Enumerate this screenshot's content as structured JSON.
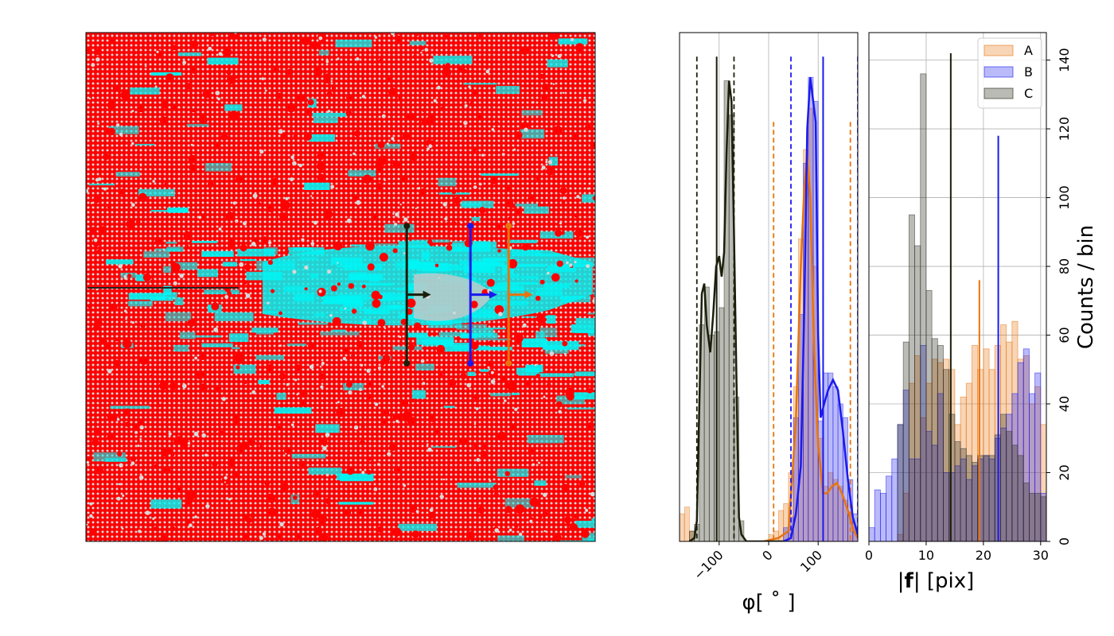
{
  "colors": {
    "A": "#e8730c",
    "B": "#1a1aee",
    "C": "#1a1f0a",
    "quiver_background": "#ff0000",
    "quiver_secondary": "#00f5f5",
    "quiver_dots": "#d8d8d8"
  },
  "chart_data": [
    {
      "type": "image",
      "description_role": "vector-field-panel",
      "axes_visible": false,
      "markers": [
        {
          "series": "A",
          "center": [
            0.83,
            0.515
          ],
          "half_length": 0.135,
          "arrow_length": 0.035
        },
        {
          "series": "B",
          "center": [
            0.755,
            0.515
          ],
          "half_length": 0.135,
          "arrow_length": 0.04
        },
        {
          "series": "C",
          "center": [
            0.63,
            0.515
          ],
          "half_length": 0.135,
          "arrow_length": 0.035
        }
      ]
    },
    {
      "type": "bar",
      "description_role": "angle-histogram",
      "xlabel": "φ[ ˚ ]",
      "xlim": [
        -180,
        180
      ],
      "ylim": [
        0,
        148
      ],
      "xticks": [
        -100,
        0,
        100
      ],
      "xtick_labels": [
        "−100",
        "0",
        "100"
      ],
      "grid": true,
      "series": [
        {
          "name": "A",
          "bins": [
            {
              "x0": -180,
              "x1": -170,
              "y": 8
            },
            {
              "x0": -170,
              "x1": -160,
              "y": 10
            },
            {
              "x0": -160,
              "x1": -150,
              "y": 3
            },
            {
              "x0": 0,
              "x1": 10,
              "y": 2
            },
            {
              "x0": 10,
              "x1": 20,
              "y": 3
            },
            {
              "x0": 20,
              "x1": 30,
              "y": 9
            },
            {
              "x0": 30,
              "x1": 40,
              "y": 11
            },
            {
              "x0": 40,
              "x1": 50,
              "y": 20
            },
            {
              "x0": 50,
              "x1": 60,
              "y": 45
            },
            {
              "x0": 60,
              "x1": 70,
              "y": 88
            },
            {
              "x0": 70,
              "x1": 80,
              "y": 114
            },
            {
              "x0": 80,
              "x1": 90,
              "y": 126
            },
            {
              "x0": 90,
              "x1": 100,
              "y": 80
            },
            {
              "x0": 100,
              "x1": 110,
              "y": 30
            },
            {
              "x0": 110,
              "x1": 120,
              "y": 16
            },
            {
              "x0": 120,
              "x1": 130,
              "y": 20
            },
            {
              "x0": 130,
              "x1": 140,
              "y": 18
            },
            {
              "x0": 140,
              "x1": 150,
              "y": 16
            },
            {
              "x0": 150,
              "x1": 160,
              "y": 12
            },
            {
              "x0": 160,
              "x1": 170,
              "y": 8
            },
            {
              "x0": 170,
              "x1": 180,
              "y": 4
            }
          ],
          "kde": [
            [
              -10,
              0
            ],
            [
              20,
              1
            ],
            [
              40,
              3
            ],
            [
              55,
              35
            ],
            [
              65,
              80
            ],
            [
              72,
              103
            ],
            [
              78,
              112
            ],
            [
              84,
              100
            ],
            [
              92,
              55
            ],
            [
              100,
              28
            ],
            [
              110,
              14
            ],
            [
              118,
              14
            ],
            [
              128,
              16
            ],
            [
              138,
              17
            ],
            [
              148,
              14
            ],
            [
              160,
              9
            ],
            [
              172,
              3
            ],
            [
              180,
              1
            ]
          ],
          "mean_line": null,
          "range_lines": [
            10,
            165
          ]
        },
        {
          "name": "B",
          "bins": [
            {
              "x0": 30,
              "x1": 40,
              "y": 4
            },
            {
              "x0": 40,
              "x1": 50,
              "y": 7
            },
            {
              "x0": 50,
              "x1": 60,
              "y": 36
            },
            {
              "x0": 60,
              "x1": 70,
              "y": 66
            },
            {
              "x0": 70,
              "x1": 80,
              "y": 110
            },
            {
              "x0": 80,
              "x1": 90,
              "y": 135
            },
            {
              "x0": 90,
              "x1": 100,
              "y": 128
            },
            {
              "x0": 100,
              "x1": 110,
              "y": 35
            },
            {
              "x0": 110,
              "x1": 120,
              "y": 49
            },
            {
              "x0": 120,
              "x1": 130,
              "y": 49
            },
            {
              "x0": 130,
              "x1": 140,
              "y": 45
            },
            {
              "x0": 140,
              "x1": 150,
              "y": 40
            },
            {
              "x0": 150,
              "x1": 160,
              "y": 36
            },
            {
              "x0": 160,
              "x1": 170,
              "y": 18
            },
            {
              "x0": 170,
              "x1": 180,
              "y": 8
            }
          ],
          "kde": [
            [
              30,
              0
            ],
            [
              45,
              1
            ],
            [
              55,
              8
            ],
            [
              65,
              22
            ],
            [
              72,
              68
            ],
            [
              78,
              120
            ],
            [
              84,
              135
            ],
            [
              90,
              128
            ],
            [
              95,
              122
            ],
            [
              100,
              60
            ],
            [
              105,
              36
            ],
            [
              112,
              40
            ],
            [
              120,
              44
            ],
            [
              130,
              47
            ],
            [
              140,
              44
            ],
            [
              150,
              32
            ],
            [
              160,
              18
            ],
            [
              170,
              7
            ],
            [
              180,
              2
            ]
          ],
          "mean_line": 110,
          "range_lines": [
            45,
            180
          ]
        },
        {
          "name": "C",
          "bins": [
            {
              "x0": -160,
              "x1": -150,
              "y": 3
            },
            {
              "x0": -150,
              "x1": -140,
              "y": 5
            },
            {
              "x0": -140,
              "x1": -130,
              "y": 63
            },
            {
              "x0": -130,
              "x1": -120,
              "y": 74
            },
            {
              "x0": -120,
              "x1": -110,
              "y": 60
            },
            {
              "x0": -110,
              "x1": -100,
              "y": 61
            },
            {
              "x0": -100,
              "x1": -90,
              "y": 68
            },
            {
              "x0": -90,
              "x1": -80,
              "y": 134
            },
            {
              "x0": -80,
              "x1": -70,
              "y": 124
            },
            {
              "x0": -70,
              "x1": -60,
              "y": 42
            },
            {
              "x0": -60,
              "x1": -50,
              "y": 6
            }
          ],
          "kde": [
            [
              -160,
              0
            ],
            [
              -150,
              1
            ],
            [
              -145,
              6
            ],
            [
              -140,
              40
            ],
            [
              -135,
              72
            ],
            [
              -130,
              75
            ],
            [
              -125,
              63
            ],
            [
              -118,
              55
            ],
            [
              -112,
              66
            ],
            [
              -106,
              80
            ],
            [
              -100,
              83
            ],
            [
              -95,
              77
            ],
            [
              -90,
              84
            ],
            [
              -85,
              113
            ],
            [
              -80,
              134
            ],
            [
              -75,
              128
            ],
            [
              -70,
              90
            ],
            [
              -65,
              46
            ],
            [
              -60,
              7
            ],
            [
              -55,
              2
            ],
            [
              -45,
              0
            ],
            [
              30,
              0
            ]
          ],
          "mean_line": -105,
          "range_lines": [
            -145,
            -70
          ]
        }
      ]
    },
    {
      "type": "bar",
      "description_role": "magnitude-histogram",
      "xlabel": "|f| [pix]",
      "xlabel_bold_part": "f",
      "ylabel": "Counts / bin",
      "xlim": [
        0,
        31
      ],
      "ylim": [
        0,
        148
      ],
      "xticks": [
        0,
        10,
        20,
        30
      ],
      "yticks": [
        0,
        20,
        40,
        60,
        80,
        100,
        120,
        140
      ],
      "grid": true,
      "legend": {
        "position": "top-right",
        "entries": [
          "A",
          "B",
          "C"
        ]
      },
      "bin_width": 1,
      "series": [
        {
          "name": "A",
          "values": [
            0,
            0,
            0,
            0,
            0,
            2,
            14,
            46,
            54,
            36,
            46,
            53,
            52,
            53,
            50,
            34,
            42,
            46,
            57,
            50,
            56,
            50,
            57,
            63,
            58,
            64,
            53,
            54,
            40,
            45,
            34
          ],
          "mean_line": 19.3,
          "mean_line_top": 76
        },
        {
          "name": "B",
          "values": [
            4,
            15,
            14,
            19,
            24,
            34,
            44,
            24,
            24,
            57,
            32,
            28,
            43,
            20,
            20,
            22,
            24,
            18,
            22,
            24,
            25,
            24,
            30,
            33,
            37,
            43,
            52,
            56,
            43,
            49,
            14
          ],
          "mean_line": 22.6,
          "mean_line_top": 118
        },
        {
          "name": "C",
          "values": [
            0,
            0,
            0,
            0,
            0,
            34,
            58,
            95,
            86,
            136,
            73,
            59,
            57,
            50,
            37,
            29,
            27,
            25,
            23,
            25,
            25,
            25,
            31,
            37,
            32,
            28,
            25,
            17,
            14,
            14,
            13
          ],
          "mean_line": 14.3,
          "mean_line_top": 142
        }
      ]
    }
  ]
}
